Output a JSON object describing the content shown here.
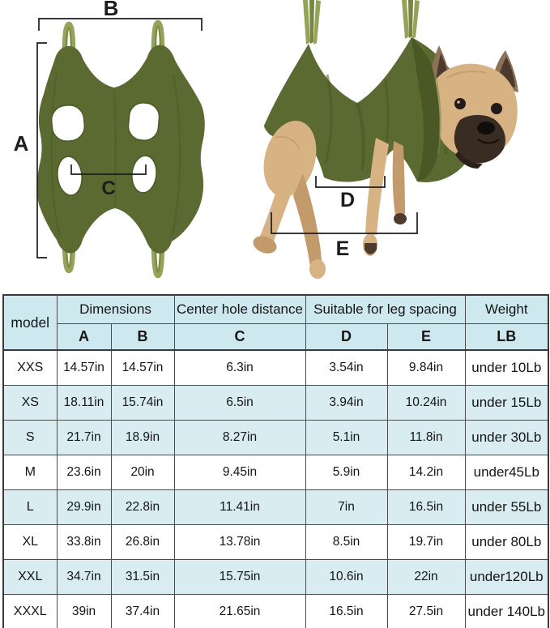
{
  "figure": {
    "flat": {
      "label_a": "A",
      "label_b": "B",
      "label_c": "C"
    },
    "photo": {
      "label_d": "D",
      "label_e": "E"
    }
  },
  "table": {
    "header": {
      "model": "model",
      "dimensions": "Dimensions",
      "center_hole": "Center hole distance",
      "leg_spacing": "Suitable for leg spacing",
      "weight": "Weight",
      "col_a": "A",
      "col_b": "B",
      "col_c": "C",
      "col_d": "D",
      "col_e": "E",
      "col_lb": "LB"
    },
    "rows": [
      {
        "model": "XXS",
        "a": "14.57in",
        "b": "14.57in",
        "c": "6.3in",
        "d": "3.54in",
        "e": "9.84in",
        "weight": "under 10Lb",
        "shaded": false
      },
      {
        "model": "XS",
        "a": "18.11in",
        "b": "15.74in",
        "c": "6.5in",
        "d": "3.94in",
        "e": "10.24in",
        "weight": "under 15Lb",
        "shaded": true
      },
      {
        "model": "S",
        "a": "21.7in",
        "b": "18.9in",
        "c": "8.27in",
        "d": "5.1in",
        "e": "11.8in",
        "weight": "under 30Lb",
        "shaded": true
      },
      {
        "model": "M",
        "a": "23.6in",
        "b": "20in",
        "c": "9.45in",
        "d": "5.9in",
        "e": "14.2in",
        "weight": "under45Lb",
        "shaded": false
      },
      {
        "model": "L",
        "a": "29.9in",
        "b": "22.8in",
        "c": "11.41in",
        "d": "7in",
        "e": "16.5in",
        "weight": "under 55Lb",
        "shaded": true
      },
      {
        "model": "XL",
        "a": "33.8in",
        "b": "26.8in",
        "c": "13.78in",
        "d": "8.5in",
        "e": "19.7in",
        "weight": "under 80Lb",
        "shaded": false
      },
      {
        "model": "XXL",
        "a": "34.7in",
        "b": "31.5in",
        "c": "15.75in",
        "d": "10.6in",
        "e": "22in",
        "weight": "under120Lb",
        "shaded": true
      },
      {
        "model": "XXXL",
        "a": "39in",
        "b": "37.4in",
        "c": "21.65in",
        "d": "16.5in",
        "e": "27.5in",
        "weight": "under 140Lb",
        "shaded": false
      }
    ]
  },
  "colors": {
    "fabric_olive": "#5b6a31",
    "fabric_shadow": "#4a5826",
    "strap_green": "#95a35a",
    "strap_dark": "#78873f",
    "dog_fawn": "#d7b283",
    "dog_fawn_dark": "#c39a6c",
    "dog_muzzle": "#382c23",
    "dog_ear": "#8d7158",
    "dog_ear_inner": "#4c3a30",
    "line_black": "#1d1d1d",
    "header_bg": "#cde8ef",
    "stripe_bg": "#d8ecf2",
    "border_gray": "#4c4c4c",
    "outer_border": "#3a3a3a"
  }
}
